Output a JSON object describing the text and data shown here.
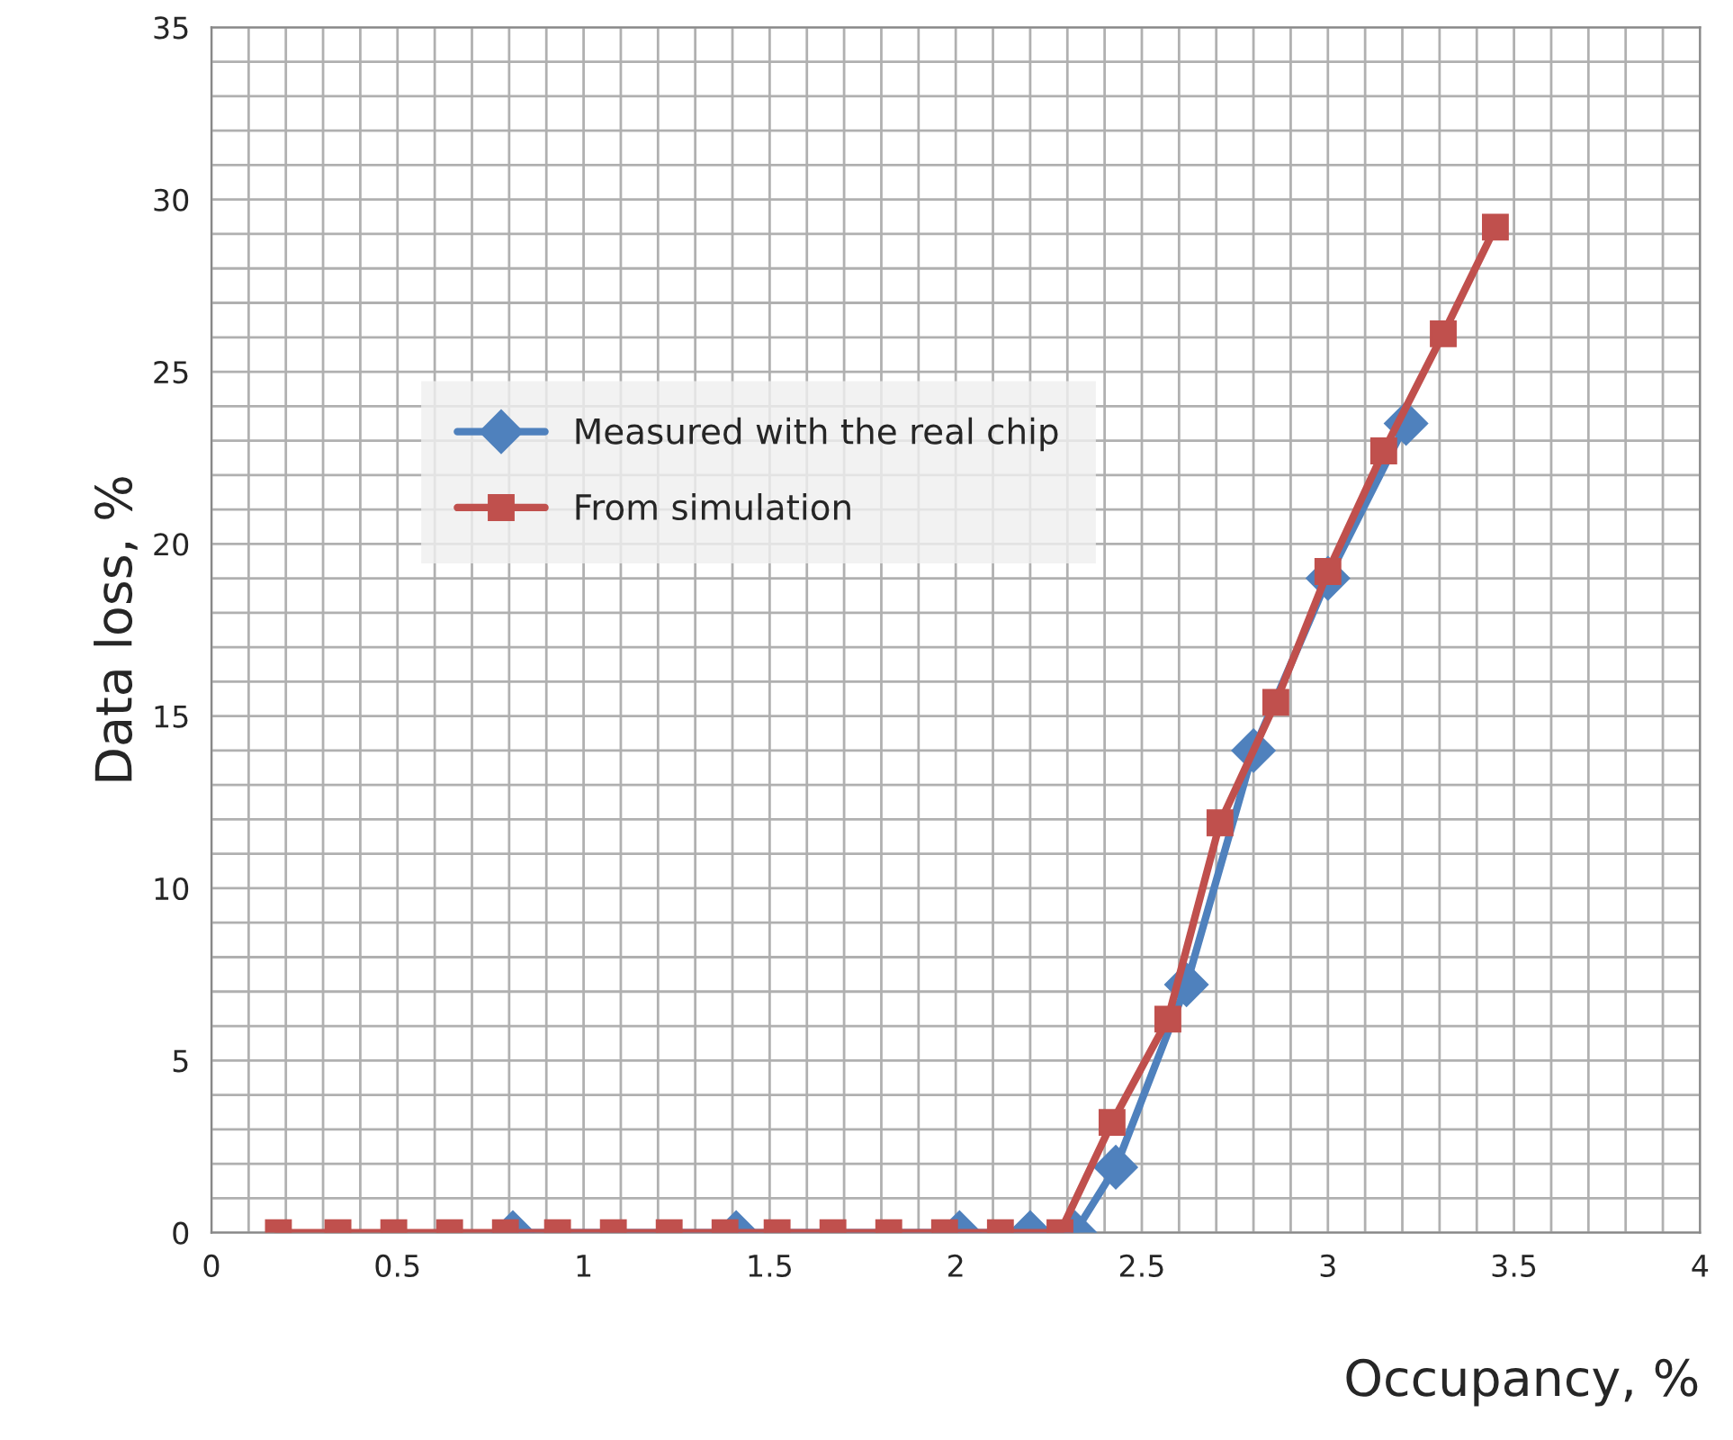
{
  "chart_data": {
    "type": "line",
    "xlabel": "Occupancy, %",
    "ylabel": "Data loss, %",
    "xlim": [
      0,
      4
    ],
    "xticks": [
      0,
      0.5,
      1,
      1.5,
      2,
      2.5,
      3,
      3.5,
      4
    ],
    "ylim": [
      0,
      35
    ],
    "yticks": [
      0,
      5,
      10,
      15,
      20,
      25,
      30,
      35
    ],
    "grid": true,
    "legend": "top left",
    "series": [
      {
        "name": "Measured with the real chip",
        "color": "#4f81bd",
        "marker": "diamond",
        "x": [
          0.81,
          1.41,
          2.01,
          2.2,
          2.32,
          2.43,
          2.62,
          2.8,
          3.0,
          3.21
        ],
        "values": [
          0,
          0,
          0,
          0,
          0,
          1.9,
          7.2,
          14.0,
          19.0,
          23.5
        ]
      },
      {
        "name": "From simulation",
        "color": "#c0504d",
        "marker": "square",
        "x": [
          0.18,
          0.34,
          0.49,
          0.64,
          0.79,
          0.93,
          1.08,
          1.23,
          1.38,
          1.52,
          1.67,
          1.82,
          1.97,
          2.12,
          2.28,
          2.42,
          2.57,
          2.71,
          2.86,
          3.0,
          3.15,
          3.31,
          3.45
        ],
        "values": [
          0,
          0,
          0,
          0,
          0,
          0,
          0,
          0,
          0,
          0,
          0,
          0,
          0,
          0,
          0,
          3.2,
          6.2,
          11.9,
          15.4,
          19.2,
          22.7,
          26.1,
          29.2
        ]
      }
    ]
  }
}
